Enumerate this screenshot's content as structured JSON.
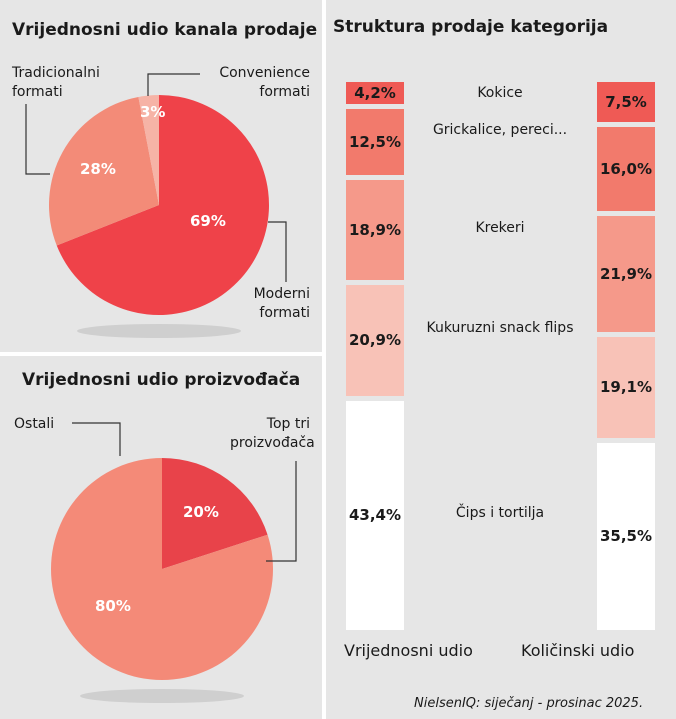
{
  "chart_data": [
    {
      "type": "pie",
      "title": "Vrijednosni udio kanala prodaje",
      "slices": [
        {
          "name": "Moderni formati",
          "value": 69,
          "label": "69%",
          "color": "#ef4249"
        },
        {
          "name": "Tradicionalni formati",
          "value": 28,
          "label": "28%",
          "color": "#f38b78"
        },
        {
          "name": "Convenience formati",
          "value": 3,
          "label": "3%",
          "color": "#f6b3a6"
        }
      ]
    },
    {
      "type": "pie",
      "title": "Vrijednosni udio proizvođača",
      "slices": [
        {
          "name": "Top tri proizvođača",
          "value": 20,
          "label": "20%",
          "color": "#e8434a"
        },
        {
          "name": "Ostali",
          "value": 80,
          "label": "80%",
          "color": "#f48a78"
        }
      ]
    },
    {
      "type": "bar",
      "stacked": true,
      "title": "Struktura prodaje kategorija",
      "categories": [
        "Vrijednosni udio",
        "Količinski udio"
      ],
      "series": [
        {
          "name": "Kokice",
          "values": [
            4.2,
            7.5
          ],
          "labels": [
            "4,2%",
            "7,5%"
          ],
          "color": "#ef5a55"
        },
        {
          "name": "Grickalice, pereci...",
          "values": [
            12.5,
            16.0
          ],
          "labels": [
            "12,5%",
            "16,0%"
          ],
          "color": "#f27a6c"
        },
        {
          "name": "Krekeri",
          "values": [
            18.9,
            21.9
          ],
          "labels": [
            "18,9%",
            "21,9%"
          ],
          "color": "#f5998a"
        },
        {
          "name": "Kukuruzni snack flips",
          "values": [
            20.9,
            19.1
          ],
          "labels": [
            "20,9%",
            "19,1%"
          ],
          "color": "#f8c2b7"
        },
        {
          "name": "Čips i tortilja",
          "values": [
            43.4,
            35.5
          ],
          "labels": [
            "43,4%",
            "35,5%"
          ],
          "color": "#ffffff"
        }
      ]
    }
  ],
  "source": "NielsenIQ: siječanj - prosinac 2025."
}
